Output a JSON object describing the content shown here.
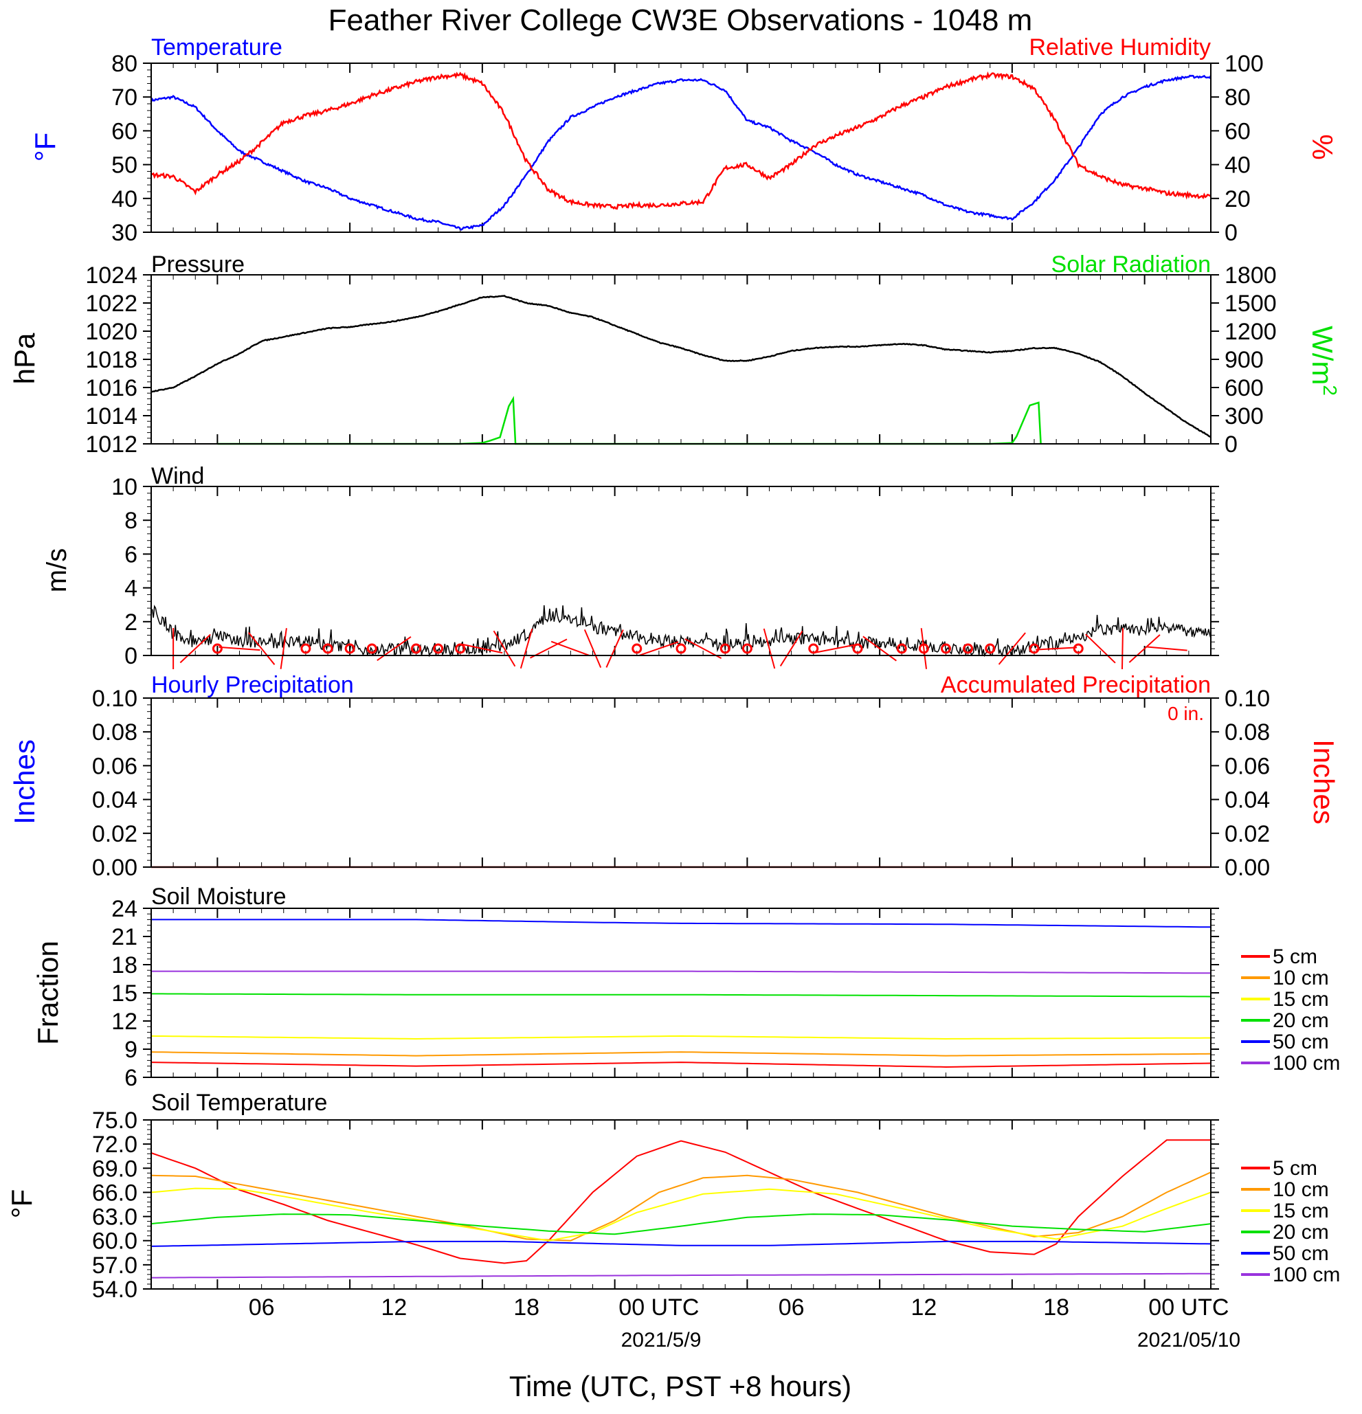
{
  "title": "Feather River College CW3E Observations - 1048 m",
  "xlabel": "Time (UTC, PST +8 hours)",
  "colors": {
    "blue": "#0000ff",
    "red": "#ff0000",
    "green": "#00e000",
    "black": "#000000",
    "orange": "#ff9900",
    "yellow": "#ffff00",
    "purple": "#9933dd"
  },
  "chart_data": [
    {
      "id": "temp_rh",
      "type": "line",
      "title_left": "Temperature",
      "title_right": "Relative Humidity",
      "ylabel_left": "°F",
      "ylabel_right": "%",
      "x_unit": "hours from start (UTC)",
      "xlim": [
        0,
        48
      ],
      "ylim_left": [
        30,
        80
      ],
      "yticks_left": [
        "30",
        "40",
        "50",
        "60",
        "70",
        "80"
      ],
      "ylim_right": [
        0,
        100
      ],
      "yticks_right": [
        "0",
        "20",
        "40",
        "60",
        "80",
        "100"
      ],
      "series": [
        {
          "name": "Temperature",
          "axis": "left",
          "color": "#0000ff",
          "x": [
            0,
            1,
            2,
            3,
            4,
            5,
            6,
            7,
            8,
            9,
            10,
            11,
            12,
            13,
            14,
            15,
            16,
            17,
            18,
            19,
            20,
            21,
            22,
            23,
            24,
            25,
            26,
            27,
            28,
            29,
            30,
            31,
            32,
            33,
            34,
            35,
            36,
            37,
            38,
            39,
            40,
            41,
            42,
            43,
            44,
            45,
            46,
            47,
            48
          ],
          "y": [
            69,
            70,
            67,
            60,
            54,
            51,
            48,
            45,
            43,
            40,
            38,
            36,
            34,
            33,
            31,
            32,
            38,
            47,
            57,
            64,
            67,
            70,
            72,
            74,
            75,
            75,
            72,
            63,
            61,
            57,
            54,
            50,
            47,
            45,
            43,
            41,
            38,
            36,
            35,
            34,
            39,
            46,
            55,
            65,
            70,
            73,
            75,
            76,
            76
          ]
        },
        {
          "name": "Relative Humidity",
          "axis": "right",
          "color": "#ff0000",
          "x": [
            0,
            1,
            2,
            3,
            4,
            5,
            6,
            7,
            8,
            9,
            10,
            11,
            12,
            13,
            14,
            15,
            16,
            17,
            18,
            19,
            20,
            21,
            22,
            23,
            24,
            25,
            26,
            27,
            28,
            29,
            30,
            31,
            32,
            33,
            34,
            35,
            36,
            37,
            38,
            39,
            40,
            41,
            42,
            43,
            44,
            45,
            46,
            47,
            48
          ],
          "y": [
            34,
            33,
            24,
            34,
            42,
            53,
            65,
            69,
            72,
            76,
            81,
            85,
            89,
            92,
            93,
            88,
            70,
            42,
            25,
            18,
            16,
            15,
            16,
            16,
            17,
            18,
            38,
            40,
            32,
            40,
            51,
            57,
            62,
            68,
            75,
            80,
            86,
            90,
            93,
            92,
            85,
            65,
            40,
            33,
            28,
            26,
            23,
            22,
            21
          ]
        }
      ]
    },
    {
      "id": "pressure_solar",
      "type": "line",
      "title_left": "Pressure",
      "title_right": "Solar Radiation",
      "ylabel_left": "hPa",
      "ylabel_right": "W/m",
      "ylabel_right_sup": "2",
      "xlim": [
        0,
        48
      ],
      "ylim_left": [
        1012,
        1024
      ],
      "yticks_left": [
        "1012",
        "1014",
        "1016",
        "1018",
        "1020",
        "1022",
        "1024"
      ],
      "ylim_right": [
        0,
        1800
      ],
      "yticks_right": [
        "0",
        "300",
        "600",
        "900",
        "1200",
        "1500",
        "1800"
      ],
      "series": [
        {
          "name": "Pressure",
          "axis": "left",
          "color": "#000000",
          "x": [
            0,
            1,
            2,
            3,
            4,
            5,
            6,
            7,
            8,
            9,
            10,
            11,
            12,
            13,
            14,
            15,
            16,
            17,
            18,
            19,
            20,
            21,
            22,
            23,
            24,
            25,
            26,
            27,
            28,
            29,
            30,
            31,
            32,
            33,
            34,
            35,
            36,
            37,
            38,
            39,
            40,
            41,
            42,
            43,
            44,
            45,
            46,
            47,
            48
          ],
          "y": [
            1015.7,
            1016.0,
            1016.8,
            1017.7,
            1018.4,
            1019.3,
            1019.6,
            1019.9,
            1020.2,
            1020.3,
            1020.5,
            1020.7,
            1021.0,
            1021.4,
            1021.9,
            1022.4,
            1022.5,
            1022.0,
            1021.8,
            1021.3,
            1021.0,
            1020.4,
            1019.8,
            1019.2,
            1018.8,
            1018.3,
            1017.9,
            1017.9,
            1018.2,
            1018.6,
            1018.8,
            1018.9,
            1018.9,
            1019.0,
            1019.1,
            1019.0,
            1018.7,
            1018.6,
            1018.5,
            1018.6,
            1018.8,
            1018.8,
            1018.4,
            1017.8,
            1016.8,
            1015.6,
            1014.5,
            1013.4,
            1012.5
          ]
        },
        {
          "name": "Solar Radiation",
          "axis": "right",
          "color": "#00e000",
          "x": [
            3,
            12,
            14,
            15,
            15.3,
            15.8,
            16.2,
            16.4,
            16.5,
            24,
            26,
            28,
            36,
            38,
            39,
            39.2,
            39.8,
            40.2,
            40.3
          ],
          "y": [
            0,
            0,
            0,
            10,
            30,
            70,
            400,
            480,
            0,
            0,
            0,
            0,
            0,
            0,
            10,
            80,
            410,
            440,
            0
          ]
        }
      ]
    },
    {
      "id": "wind",
      "type": "line",
      "title_left": "Wind",
      "ylabel_left": "m/s",
      "xlim": [
        0,
        48
      ],
      "ylim_left": [
        0,
        10
      ],
      "yticks_left": [
        "0",
        "2",
        "4",
        "6",
        "8",
        "10"
      ],
      "series": [
        {
          "name": "Wind",
          "axis": "left",
          "color": "#000000",
          "x": [
            0,
            1,
            2,
            3,
            4,
            5,
            6,
            7,
            8,
            9,
            10,
            11,
            12,
            13,
            14,
            15,
            16,
            17,
            18,
            19,
            20,
            21,
            22,
            23,
            24,
            25,
            26,
            27,
            28,
            29,
            30,
            31,
            32,
            33,
            34,
            35,
            36,
            37,
            38,
            39,
            40,
            41,
            42,
            43,
            44,
            45,
            46,
            47,
            48
          ],
          "y": [
            2.6,
            1.3,
            0.7,
            1.1,
            0.9,
            0.7,
            0.8,
            0.9,
            0.6,
            0.4,
            0.3,
            0.4,
            0.3,
            0.2,
            0.3,
            0.4,
            0.6,
            1.2,
            2.4,
            2.1,
            1.6,
            1.4,
            1.1,
            0.9,
            0.8,
            0.7,
            0.6,
            0.8,
            0.9,
            1.0,
            1.0,
            0.8,
            0.7,
            0.8,
            0.6,
            0.6,
            0.4,
            0.3,
            0.2,
            0.2,
            0.5,
            0.7,
            1.1,
            1.5,
            1.6,
            1.5,
            1.7,
            1.4,
            1.2
          ]
        }
      ],
      "calm_hours": [
        3,
        7,
        8,
        9,
        10,
        12,
        13,
        14,
        22,
        24,
        26,
        27,
        30,
        32,
        34,
        35,
        36,
        37,
        38,
        40,
        42
      ]
    },
    {
      "id": "precip",
      "type": "line",
      "title_left": "Hourly Precipitation",
      "title_right": "Accumulated Precipitation",
      "annotation": "0 in.",
      "ylabel_left": "Inches",
      "ylabel_right": "Inches",
      "xlim": [
        0,
        48
      ],
      "ylim_left": [
        0,
        0.1
      ],
      "yticks_left": [
        "0.00",
        "0.02",
        "0.04",
        "0.06",
        "0.08",
        "0.10"
      ],
      "ylim_right": [
        0,
        0.1
      ],
      "yticks_right": [
        "0.00",
        "0.02",
        "0.04",
        "0.06",
        "0.08",
        "0.10"
      ],
      "series": [
        {
          "name": "Accumulated Precipitation",
          "axis": "right",
          "color": "#ff0000",
          "x": [
            0,
            48
          ],
          "y": [
            0,
            0
          ]
        }
      ]
    },
    {
      "id": "soil_moisture",
      "type": "line",
      "title_left": "Soil Moisture",
      "ylabel_left": "Fraction",
      "xlim": [
        0,
        48
      ],
      "ylim_left": [
        6,
        24
      ],
      "yticks_left": [
        "6",
        "9",
        "12",
        "15",
        "18",
        "21",
        "24"
      ],
      "legend": [
        "5 cm",
        "10 cm",
        "15 cm",
        "20 cm",
        "50 cm",
        "100 cm"
      ],
      "series": [
        {
          "name": "5 cm",
          "color": "#ff0000",
          "x": [
            0,
            12,
            24,
            36,
            48
          ],
          "y": [
            7.6,
            7.2,
            7.6,
            7.1,
            7.5
          ]
        },
        {
          "name": "10 cm",
          "color": "#ff9900",
          "x": [
            0,
            12,
            24,
            36,
            48
          ],
          "y": [
            8.7,
            8.3,
            8.7,
            8.3,
            8.5
          ]
        },
        {
          "name": "15 cm",
          "color": "#ffff00",
          "x": [
            0,
            12,
            24,
            36,
            48
          ],
          "y": [
            10.4,
            10.1,
            10.4,
            10.1,
            10.2
          ]
        },
        {
          "name": "20 cm",
          "color": "#00e000",
          "x": [
            0,
            12,
            24,
            36,
            48
          ],
          "y": [
            14.9,
            14.8,
            14.8,
            14.7,
            14.6
          ]
        },
        {
          "name": "50 cm",
          "color": "#0000ff",
          "x": [
            0,
            12,
            20,
            24,
            36,
            48
          ],
          "y": [
            22.8,
            22.8,
            22.5,
            22.4,
            22.3,
            22.0
          ]
        },
        {
          "name": "100 cm",
          "color": "#9933dd",
          "x": [
            0,
            24,
            48
          ],
          "y": [
            17.3,
            17.3,
            17.1
          ]
        }
      ]
    },
    {
      "id": "soil_temp",
      "type": "line",
      "title_left": "Soil Temperature",
      "ylabel_left": "°F",
      "xlim": [
        0,
        48
      ],
      "ylim_left": [
        54,
        75
      ],
      "yticks_left": [
        "54.0",
        "57.0",
        "60.0",
        "63.0",
        "66.0",
        "69.0",
        "72.0",
        "75.0"
      ],
      "legend": [
        "5 cm",
        "10 cm",
        "15 cm",
        "20 cm",
        "50 cm",
        "100 cm"
      ],
      "series": [
        {
          "name": "5 cm",
          "color": "#ff0000",
          "x": [
            0,
            2,
            4,
            6,
            8,
            10,
            12,
            14,
            16,
            17,
            18,
            20,
            22,
            24,
            26,
            28,
            30,
            32,
            34,
            36,
            38,
            40,
            41,
            42,
            44,
            46,
            48
          ],
          "y": [
            70.9,
            69.0,
            66.3,
            64.5,
            62.5,
            61.0,
            59.5,
            57.8,
            57.2,
            57.5,
            60.0,
            66.0,
            70.5,
            72.4,
            71.0,
            68.5,
            66.0,
            64.0,
            62.0,
            60.0,
            58.6,
            58.3,
            59.6,
            63.0,
            68.0,
            72.5,
            72.5
          ]
        },
        {
          "name": "10 cm",
          "color": "#ff9900",
          "x": [
            0,
            2,
            4,
            6,
            10,
            14,
            17,
            19,
            21,
            23,
            25,
            27,
            29,
            32,
            36,
            40,
            42,
            44,
            46,
            48
          ],
          "y": [
            68.1,
            68.0,
            67.0,
            66.0,
            64.0,
            62.0,
            60.2,
            60.0,
            62.5,
            66.0,
            67.8,
            68.1,
            67.6,
            66.0,
            63.0,
            60.5,
            61.0,
            63.0,
            66.0,
            68.5
          ]
        },
        {
          "name": "15 cm",
          "color": "#ffff00",
          "x": [
            0,
            2,
            4,
            6,
            10,
            14,
            18,
            20,
            22,
            25,
            28,
            31,
            34,
            38,
            41,
            44,
            46,
            48
          ],
          "y": [
            66.0,
            66.5,
            66.4,
            65.5,
            63.5,
            61.8,
            60.0,
            61.0,
            63.5,
            65.8,
            66.4,
            65.8,
            64.0,
            61.5,
            60.2,
            61.8,
            64.0,
            66.0
          ]
        },
        {
          "name": "20 cm",
          "color": "#00e000",
          "x": [
            0,
            3,
            6,
            9,
            12,
            15,
            18,
            21,
            24,
            27,
            30,
            33,
            36,
            39,
            42,
            45,
            48
          ],
          "y": [
            62.1,
            62.9,
            63.3,
            63.2,
            62.5,
            61.8,
            61.2,
            60.8,
            61.8,
            62.9,
            63.3,
            63.2,
            62.6,
            61.8,
            61.4,
            61.1,
            62.1
          ]
        },
        {
          "name": "50 cm",
          "color": "#0000ff",
          "x": [
            0,
            12,
            16,
            24,
            28,
            36,
            40,
            48
          ],
          "y": [
            59.3,
            59.9,
            59.9,
            59.4,
            59.4,
            59.9,
            59.9,
            59.6
          ]
        },
        {
          "name": "100 cm",
          "color": "#9933dd",
          "x": [
            0,
            24,
            48
          ],
          "y": [
            55.4,
            55.7,
            55.9
          ]
        }
      ]
    }
  ],
  "x_ticks": [
    "06",
    "12",
    "18",
    "00 UTC",
    "06",
    "12",
    "18",
    "00 UTC"
  ],
  "date_labels": [
    "2021/5/9",
    "2021/05/10"
  ]
}
